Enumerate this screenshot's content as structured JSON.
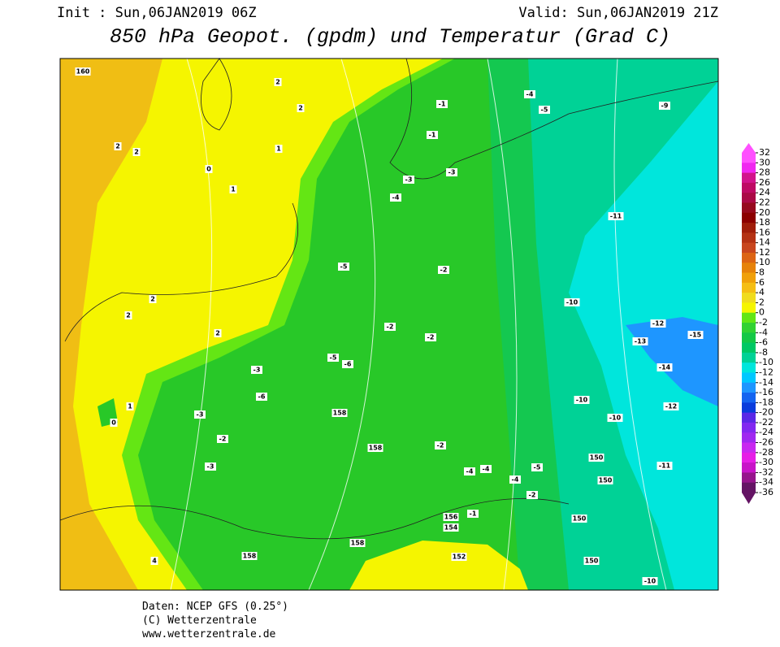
{
  "header": {
    "init": "Init : Sun,06JAN2019 06Z",
    "valid": "Valid: Sun,06JAN2019 21Z",
    "title": "850 hPa Geopot. (gpdm) und Temperatur (Grad C)"
  },
  "footer": [
    "Daten: NCEP GFS (0.25°)",
    "(C) Wetterzentrale",
    "www.wetterzentrale.de"
  ],
  "colorbar": {
    "ticks": [
      32,
      30,
      28,
      26,
      24,
      22,
      20,
      18,
      16,
      14,
      12,
      10,
      8,
      6,
      4,
      2,
      0,
      -2,
      -4,
      -6,
      -8,
      -10,
      -12,
      -14,
      -16,
      -18,
      -20,
      -22,
      -24,
      -26,
      -28,
      -30,
      -32,
      -34,
      -36
    ],
    "band_colors": [
      "#ff50ff",
      "#f028f0",
      "#d2148c",
      "#be0a64",
      "#aa0a46",
      "#960a1e",
      "#8c0000",
      "#a01e0a",
      "#b43214",
      "#c8461e",
      "#dc6414",
      "#e6820a",
      "#f0a00a",
      "#f5be14",
      "#f0dc1e",
      "#f5f500",
      "#64e614",
      "#32d232",
      "#14c846",
      "#00c864",
      "#00d296",
      "#00e6dc",
      "#00c8ff",
      "#1e96ff",
      "#1464f0",
      "#0a3cdc",
      "#5a28e6",
      "#8228f0",
      "#a028f0",
      "#c828f0",
      "#e61ee6",
      "#c814c8",
      "#96148c",
      "#641464"
    ]
  },
  "map_labels": [
    160,
    2,
    2,
    1,
    0,
    1,
    2,
    2,
    2,
    2,
    2,
    1,
    0,
    4,
    -1,
    -1,
    -3,
    -3,
    -4,
    -4,
    -5,
    -9,
    -11,
    -5,
    -2,
    -10,
    -12,
    -13,
    -15,
    -14,
    -2,
    -2,
    -5,
    -6,
    -3,
    -10,
    -12,
    -10,
    -6,
    158,
    158,
    -2,
    150,
    -11,
    150,
    -4,
    -4,
    -4,
    -5,
    -2,
    150,
    156,
    154,
    -1,
    152,
    150,
    -10,
    158,
    158,
    -3,
    -3,
    -2
  ]
}
